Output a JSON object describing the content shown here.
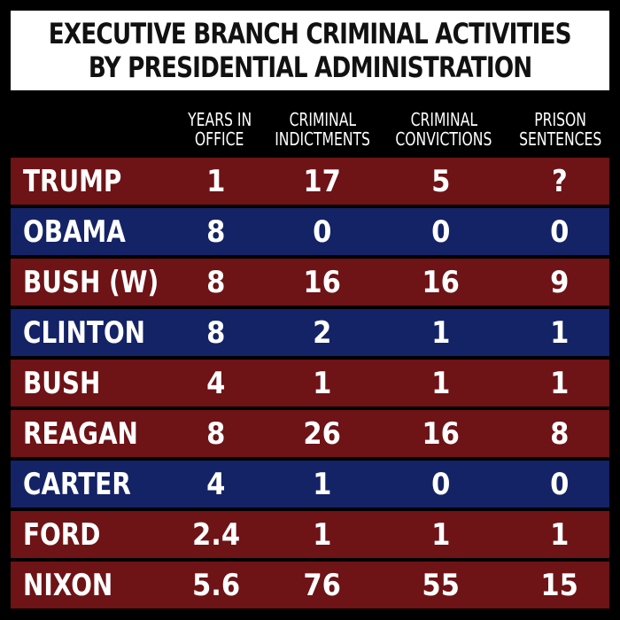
{
  "title": {
    "line1": "EXECUTIVE BRANCH CRIMINAL ACTIVITIES",
    "line2": "BY PRESIDENTIAL ADMINISTRATION"
  },
  "colors": {
    "red_row": "#6e1316",
    "blue_row": "#142366",
    "title_background": "#ffffff",
    "page_background": "#000000"
  },
  "chart_data": {
    "type": "table",
    "title": "EXECUTIVE BRANCH CRIMINAL ACTIVITIES BY PRESIDENTIAL ADMINISTRATION",
    "columns": [
      {
        "line1": "YEARS IN",
        "line2": "OFFICE"
      },
      {
        "line1": "CRIMINAL",
        "line2": "INDICTMENTS"
      },
      {
        "line1": "CRIMINAL",
        "line2": "CONVICTIONS"
      },
      {
        "line1": "PRISON",
        "line2": "SENTENCES"
      }
    ],
    "rows": [
      {
        "name": "TRUMP",
        "color": "#6e1316",
        "values": [
          "1",
          "17",
          "5",
          "?"
        ]
      },
      {
        "name": "OBAMA",
        "color": "#142366",
        "values": [
          "8",
          "0",
          "0",
          "0"
        ]
      },
      {
        "name": "BUSH (W)",
        "color": "#6e1316",
        "values": [
          "8",
          "16",
          "16",
          "9"
        ]
      },
      {
        "name": "CLINTON",
        "color": "#142366",
        "values": [
          "8",
          "2",
          "1",
          "1"
        ]
      },
      {
        "name": "BUSH",
        "color": "#6e1316",
        "values": [
          "4",
          "1",
          "1",
          "1"
        ]
      },
      {
        "name": "REAGAN",
        "color": "#6e1316",
        "values": [
          "8",
          "26",
          "16",
          "8"
        ]
      },
      {
        "name": "CARTER",
        "color": "#142366",
        "values": [
          "4",
          "1",
          "0",
          "0"
        ]
      },
      {
        "name": "FORD",
        "color": "#6e1316",
        "values": [
          "2.4",
          "1",
          "1",
          "1"
        ]
      },
      {
        "name": "NIXON",
        "color": "#6e1316",
        "values": [
          "5.6",
          "76",
          "55",
          "15"
        ]
      }
    ]
  }
}
